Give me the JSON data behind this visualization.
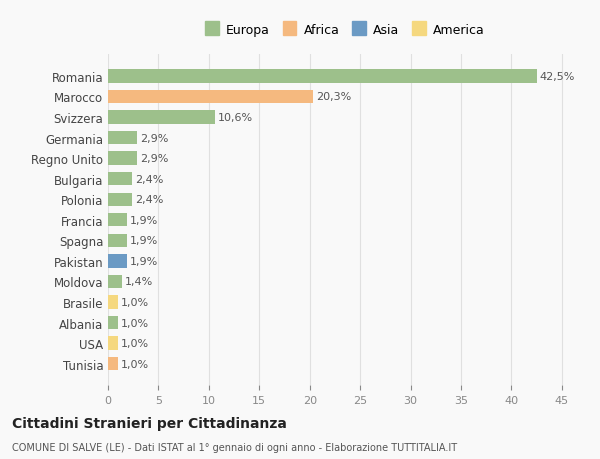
{
  "countries": [
    "Romania",
    "Marocco",
    "Svizzera",
    "Germania",
    "Regno Unito",
    "Bulgaria",
    "Polonia",
    "Francia",
    "Spagna",
    "Pakistan",
    "Moldova",
    "Brasile",
    "Albania",
    "USA",
    "Tunisia"
  ],
  "values": [
    42.5,
    20.3,
    10.6,
    2.9,
    2.9,
    2.4,
    2.4,
    1.9,
    1.9,
    1.9,
    1.4,
    1.0,
    1.0,
    1.0,
    1.0
  ],
  "labels": [
    "42,5%",
    "20,3%",
    "10,6%",
    "2,9%",
    "2,9%",
    "2,4%",
    "2,4%",
    "1,9%",
    "1,9%",
    "1,9%",
    "1,4%",
    "1,0%",
    "1,0%",
    "1,0%",
    "1,0%"
  ],
  "continents": [
    "Europa",
    "Africa",
    "Europa",
    "Europa",
    "Europa",
    "Europa",
    "Europa",
    "Europa",
    "Europa",
    "Asia",
    "Europa",
    "America",
    "Europa",
    "America",
    "Africa"
  ],
  "continent_colors": {
    "Europa": "#9DC08B",
    "Africa": "#F5B97F",
    "Asia": "#6B9AC4",
    "America": "#F5D87F"
  },
  "legend_order": [
    "Europa",
    "Africa",
    "Asia",
    "America"
  ],
  "title": "Cittadini Stranieri per Cittadinanza",
  "subtitle": "COMUNE DI SALVE (LE) - Dati ISTAT al 1° gennaio di ogni anno - Elaborazione TUTTITALIA.IT",
  "xlim": [
    0,
    47
  ],
  "xticks": [
    0,
    5,
    10,
    15,
    20,
    25,
    30,
    35,
    40,
    45
  ],
  "background_color": "#f9f9f9",
  "grid_color": "#e0e0e0"
}
